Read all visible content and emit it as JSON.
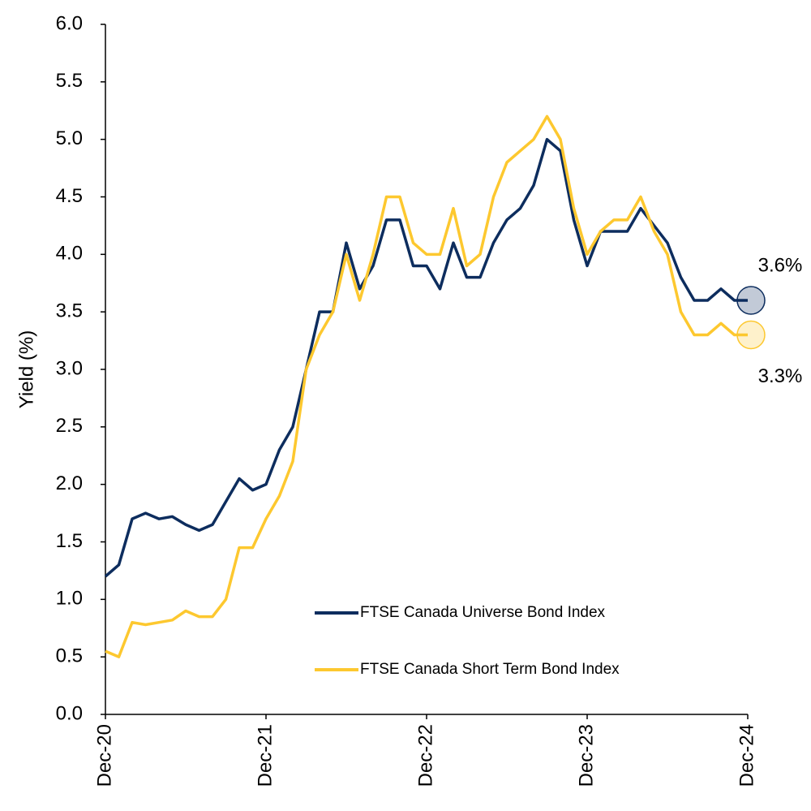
{
  "chart_data": {
    "type": "line",
    "y_label": "Yield (%)",
    "categories": [
      "Dec-20",
      null,
      null,
      null,
      null,
      null,
      null,
      null,
      null,
      null,
      null,
      null,
      "Dec-21",
      null,
      null,
      null,
      null,
      null,
      null,
      null,
      null,
      null,
      null,
      null,
      "Dec-22",
      null,
      null,
      null,
      null,
      null,
      null,
      null,
      null,
      null,
      null,
      null,
      "Dec-23",
      null,
      null,
      null,
      null,
      null,
      null,
      null,
      null,
      null,
      null,
      null,
      "Dec-24"
    ],
    "series": [
      {
        "name": "FTSE Canada Universe Bond Index",
        "color": "#0d2d5e",
        "values": [
          1.2,
          1.3,
          1.7,
          1.75,
          1.7,
          1.72,
          1.65,
          1.6,
          1.65,
          1.85,
          2.05,
          1.95,
          2.0,
          2.3,
          2.5,
          3.0,
          3.5,
          3.5,
          4.1,
          3.7,
          3.9,
          4.3,
          4.3,
          3.9,
          3.9,
          3.7,
          4.1,
          3.8,
          3.8,
          4.1,
          4.3,
          4.4,
          4.6,
          5.0,
          4.9,
          4.3,
          3.9,
          4.2,
          4.2,
          4.2,
          4.4,
          4.25,
          4.1,
          3.8,
          3.6,
          3.6,
          3.7,
          3.6,
          3.6
        ]
      },
      {
        "name": "FTSE Canada Short Term Bond Index",
        "color": "#fdc82f",
        "values": [
          0.55,
          0.5,
          0.8,
          0.78,
          0.8,
          0.82,
          0.9,
          0.85,
          0.85,
          1.0,
          1.45,
          1.45,
          1.7,
          1.9,
          2.2,
          3.0,
          3.3,
          3.5,
          4.0,
          3.6,
          4.0,
          4.5,
          4.5,
          4.1,
          4.0,
          4.0,
          4.4,
          3.9,
          4.0,
          4.5,
          4.8,
          4.9,
          5.0,
          5.2,
          5.0,
          4.4,
          4.0,
          4.2,
          4.3,
          4.3,
          4.5,
          4.2,
          4.0,
          3.5,
          3.3,
          3.3,
          3.4,
          3.3,
          3.3
        ]
      }
    ],
    "end_labels": [
      "3.6%",
      "3.3%"
    ],
    "ylim": [
      0,
      6
    ],
    "yticks": [
      {
        "value": 0,
        "label": "0.0"
      },
      0.5,
      {
        "value": 1,
        "label": "1.0"
      },
      1.5,
      {
        "value": 2,
        "label": "2.0"
      },
      2.5,
      {
        "value": 3,
        "label": "3.0"
      },
      3.5,
      {
        "value": 4,
        "label": "4.0"
      },
      4.5,
      {
        "value": 5,
        "label": "5.0"
      },
      5.5,
      {
        "value": 6,
        "label": "6.0"
      }
    ],
    "grid": false,
    "legend": "lower center"
  }
}
